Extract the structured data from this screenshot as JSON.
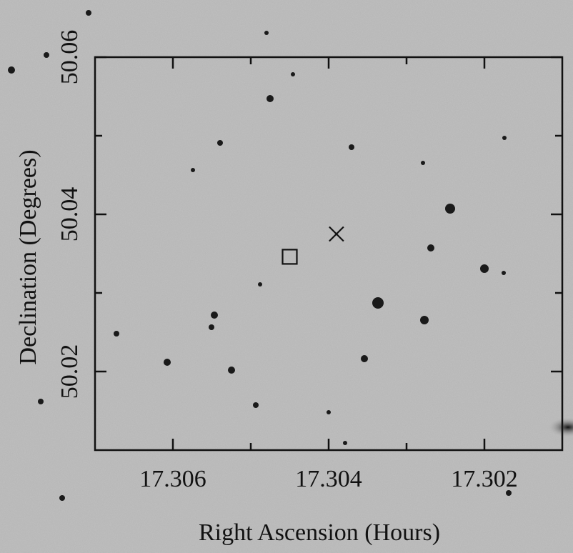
{
  "chart_data": {
    "type": "scatter",
    "x_label": "Right Ascension (Hours)",
    "y_label": "Declination (Degrees)",
    "xlim": [
      17.307,
      17.301
    ],
    "xticks": [
      17.306,
      17.304,
      17.302
    ],
    "xminorticks": [
      17.305,
      17.303
    ],
    "ylim": [
      50.01,
      50.06
    ],
    "yticks": [
      50.06,
      50.04,
      50.02
    ],
    "yminorticks": [
      50.05,
      50.03
    ],
    "series": [
      {
        "marker": "square",
        "color": "#111111",
        "x": [
          17.3045
        ],
        "values": [
          50.0346
        ]
      },
      {
        "marker": "cross",
        "color": "#111111",
        "x": [
          17.3039
        ],
        "values": [
          50.0375
        ]
      }
    ]
  }
}
